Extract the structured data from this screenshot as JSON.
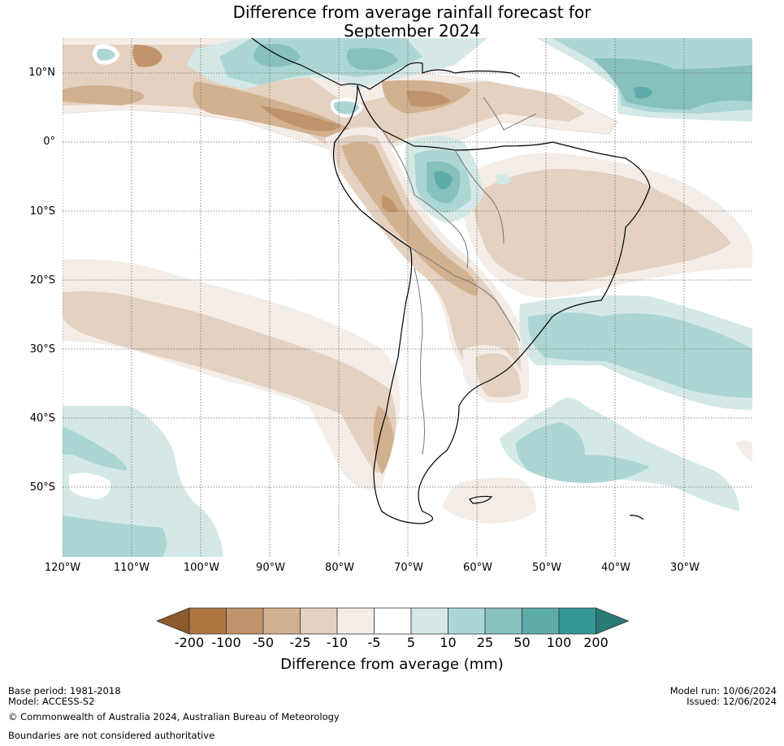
{
  "title": {
    "line1": "Difference from average rainfall forecast for",
    "line2": "September 2024"
  },
  "map": {
    "region": "South America",
    "lat_labels": [
      "10°N",
      "0°",
      "10°S",
      "20°S",
      "30°S",
      "40°S",
      "50°S"
    ],
    "lon_labels": [
      "120°W",
      "110°W",
      "100°W",
      "90°W",
      "80°W",
      "70°W",
      "60°W",
      "50°W",
      "40°W",
      "30°W"
    ],
    "lon_range": [
      -120,
      -25
    ],
    "lat_range": [
      -60,
      15
    ],
    "gridlines": "dotted"
  },
  "colorbar": {
    "label": "Difference from average (mm)",
    "ticks": [
      "-200",
      "-100",
      "-50",
      "-25",
      "-10",
      "-5",
      "5",
      "10",
      "25",
      "50",
      "100",
      "200"
    ],
    "colors": {
      "under": "#8c5a2b",
      "bins": [
        "#ae7641",
        "#c0936a",
        "#d2b190",
        "#e4d1c0",
        "#f4ede7",
        "#ffffff",
        "#d4e9e7",
        "#acd6d4",
        "#86c1be",
        "#5dacaa",
        "#339896"
      ],
      "over": "#2a7a78"
    }
  },
  "footer": {
    "base_period": "Base period: 1981-2018",
    "model": "Model: ACCESS-S2",
    "copyright": "© Commonwealth of Australia 2024, Australian Bureau of Meteorology",
    "disclaimer": "Boundaries are not considered authoritative",
    "model_run": "Model run: 10/06/2024",
    "issued": "Issued: 12/06/2024"
  }
}
